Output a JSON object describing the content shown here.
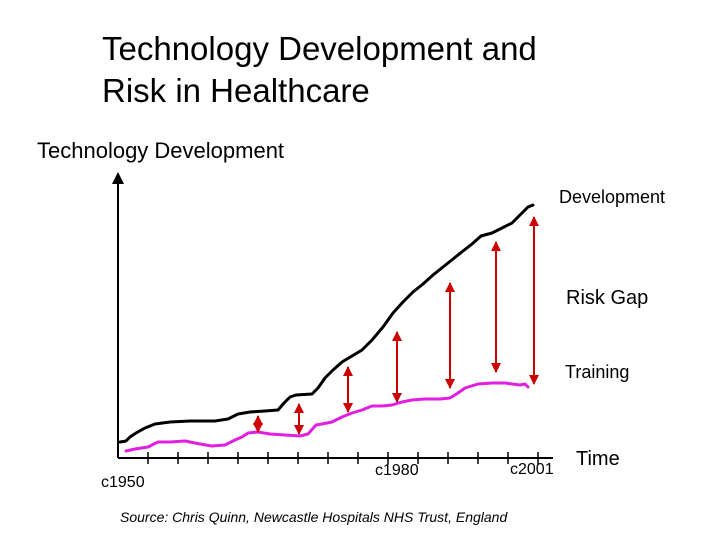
{
  "slide": {
    "title_line1": "Technology Development and",
    "title_line2": "Risk in Healthcare",
    "subtitle": "Technology Development",
    "source": "Source: Chris Quinn, Newcastle Hospitals NHS Trust, England"
  },
  "chart_data": {
    "type": "line",
    "x_tick_labels": [
      "c1950",
      "c1980",
      "c2001"
    ],
    "xlabel": "Time",
    "ylabel": "",
    "grid": false,
    "series_labels": {
      "development": "Development",
      "gap": "Risk Gap",
      "training": "Training"
    },
    "colors": {
      "development": "#000000",
      "training": "#e11ee1",
      "gap_arrows": "#cc0000",
      "axis": "#000000"
    }
  }
}
